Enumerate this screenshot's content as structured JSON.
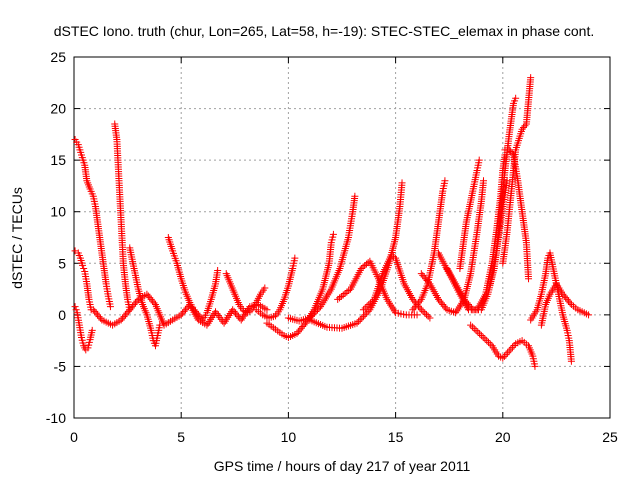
{
  "chart_data": {
    "type": "scatter",
    "title": "dSTEC Iono. truth (chur, Lon=265, Lat=58, h=-19): STEC-STEC_elemax in phase cont.",
    "xlabel": "GPS time / hours of day 217 of year 2011",
    "ylabel": "dSTEC  / TECUs",
    "xlim": [
      0,
      25
    ],
    "ylim": [
      -10,
      25
    ],
    "xticks": [
      0,
      5,
      10,
      15,
      20,
      25
    ],
    "yticks": [
      -10,
      -5,
      0,
      5,
      10,
      15,
      20,
      25
    ],
    "grid": true,
    "marker": "+",
    "color": "#ff0000",
    "series": [
      {
        "points": [
          [
            0.05,
            17.0
          ],
          [
            0.2,
            16.5
          ],
          [
            0.35,
            15.5
          ],
          [
            0.5,
            14.5
          ],
          [
            0.6,
            13.0
          ],
          [
            0.75,
            12.2
          ],
          [
            0.9,
            11.5
          ],
          [
            1.0,
            10.5
          ],
          [
            1.1,
            9.0
          ],
          [
            1.2,
            7.5
          ],
          [
            1.3,
            6.0
          ],
          [
            1.4,
            4.5
          ],
          [
            1.5,
            3.0
          ],
          [
            1.6,
            1.8
          ],
          [
            1.7,
            0.8
          ]
        ]
      },
      {
        "points": [
          [
            0.05,
            6.2
          ],
          [
            0.2,
            6.0
          ],
          [
            0.3,
            5.5
          ],
          [
            0.4,
            4.8
          ],
          [
            0.5,
            4.2
          ],
          [
            0.6,
            3.0
          ],
          [
            0.7,
            1.5
          ],
          [
            0.8,
            0.5
          ]
        ]
      },
      {
        "points": [
          [
            0.05,
            0.8
          ],
          [
            0.15,
            0.2
          ],
          [
            0.25,
            -1.0
          ],
          [
            0.35,
            -2.2
          ],
          [
            0.45,
            -3.0
          ],
          [
            0.55,
            -3.4
          ],
          [
            0.65,
            -3.2
          ],
          [
            0.75,
            -2.4
          ],
          [
            0.85,
            -1.5
          ]
        ]
      },
      {
        "points": [
          [
            1.9,
            18.5
          ],
          [
            2.0,
            17.0
          ],
          [
            2.05,
            15.0
          ],
          [
            2.1,
            13.0
          ],
          [
            2.15,
            11.0
          ],
          [
            2.2,
            9.0
          ],
          [
            2.25,
            7.0
          ],
          [
            2.3,
            5.0
          ],
          [
            2.4,
            3.0
          ],
          [
            2.5,
            1.5
          ],
          [
            2.6,
            0.5
          ]
        ]
      },
      {
        "points": [
          [
            2.6,
            6.5
          ],
          [
            2.8,
            4.5
          ],
          [
            3.0,
            2.5
          ],
          [
            3.2,
            1.0
          ],
          [
            3.4,
            0.0
          ],
          [
            3.6,
            -1.5
          ],
          [
            3.7,
            -2.5
          ],
          [
            3.8,
            -3.0
          ],
          [
            3.9,
            -2.0
          ],
          [
            4.0,
            -1.0
          ]
        ]
      },
      {
        "points": [
          [
            4.4,
            7.5
          ],
          [
            4.6,
            6.2
          ],
          [
            4.8,
            5.0
          ],
          [
            5.0,
            3.5
          ],
          [
            5.2,
            2.2
          ],
          [
            5.4,
            1.2
          ],
          [
            5.6,
            0.5
          ],
          [
            5.8,
            0.0
          ],
          [
            6.0,
            -0.5
          ],
          [
            6.2,
            0.2
          ],
          [
            6.4,
            1.5
          ],
          [
            6.6,
            3.0
          ],
          [
            6.7,
            4.3
          ]
        ]
      },
      {
        "points": [
          [
            7.1,
            4.0
          ],
          [
            7.3,
            3.0
          ],
          [
            7.5,
            2.0
          ],
          [
            7.7,
            1.0
          ],
          [
            7.9,
            0.4
          ],
          [
            8.1,
            0.2
          ],
          [
            8.3,
            0.5
          ],
          [
            8.5,
            1.2
          ],
          [
            8.7,
            2.0
          ],
          [
            8.9,
            2.6
          ]
        ]
      },
      {
        "points": [
          [
            8.5,
            0.5
          ],
          [
            8.8,
            0.0
          ],
          [
            9.1,
            -0.3
          ],
          [
            9.4,
            -0.1
          ],
          [
            9.6,
            0.5
          ],
          [
            9.8,
            1.5
          ],
          [
            10.0,
            2.8
          ],
          [
            10.2,
            4.5
          ],
          [
            10.3,
            5.5
          ]
        ]
      },
      {
        "points": [
          [
            9.0,
            -0.8
          ],
          [
            9.4,
            -1.4
          ],
          [
            9.8,
            -2.0
          ],
          [
            10.0,
            -2.2
          ],
          [
            10.4,
            -1.8
          ],
          [
            10.8,
            -0.8
          ],
          [
            11.2,
            0.5
          ],
          [
            11.6,
            2.5
          ],
          [
            11.9,
            5.0
          ],
          [
            12.0,
            7.0
          ],
          [
            12.1,
            7.8
          ]
        ]
      },
      {
        "points": [
          [
            10.0,
            -0.3
          ],
          [
            10.5,
            -0.6
          ],
          [
            11.0,
            -0.3
          ],
          [
            11.5,
            0.8
          ],
          [
            12.0,
            2.5
          ],
          [
            12.4,
            4.5
          ],
          [
            12.8,
            7.5
          ],
          [
            13.0,
            10.0
          ],
          [
            13.1,
            11.5
          ]
        ]
      },
      {
        "points": [
          [
            11.0,
            -0.5
          ],
          [
            11.8,
            -1.2
          ],
          [
            12.5,
            -1.3
          ],
          [
            13.2,
            -0.8
          ],
          [
            13.8,
            0.5
          ],
          [
            14.3,
            2.5
          ],
          [
            14.7,
            5.0
          ],
          [
            15.0,
            7.5
          ],
          [
            15.2,
            10.5
          ],
          [
            15.3,
            12.8
          ]
        ]
      },
      {
        "points": [
          [
            12.3,
            1.5
          ],
          [
            12.9,
            2.5
          ],
          [
            13.4,
            4.5
          ],
          [
            13.8,
            5.2
          ],
          [
            14.2,
            3.5
          ],
          [
            14.6,
            1.5
          ],
          [
            15.0,
            0.2
          ],
          [
            15.5,
            0.0
          ],
          [
            16.0,
            0.0
          ]
        ]
      },
      {
        "points": [
          [
            13.5,
            0.5
          ],
          [
            14.0,
            1.5
          ],
          [
            14.4,
            4.0
          ],
          [
            14.8,
            5.8
          ],
          [
            15.0,
            5.5
          ],
          [
            15.4,
            3.0
          ],
          [
            15.8,
            1.5
          ],
          [
            16.2,
            0.5
          ],
          [
            16.6,
            -0.3
          ]
        ]
      },
      {
        "points": [
          [
            15.8,
            0.5
          ],
          [
            16.2,
            1.5
          ],
          [
            16.5,
            3.0
          ],
          [
            16.8,
            6.0
          ],
          [
            17.0,
            9.0
          ],
          [
            17.2,
            12.0
          ],
          [
            17.3,
            13.0
          ]
        ]
      },
      {
        "points": [
          [
            16.2,
            4.0
          ],
          [
            16.6,
            3.0
          ],
          [
            17.0,
            1.5
          ],
          [
            17.4,
            0.5
          ],
          [
            17.8,
            0.2
          ],
          [
            18.2,
            1.5
          ],
          [
            18.5,
            4.0
          ],
          [
            18.8,
            8.0
          ],
          [
            19.0,
            11.0
          ],
          [
            19.1,
            13.0
          ]
        ]
      },
      {
        "points": [
          [
            17.0,
            6.0
          ],
          [
            17.5,
            4.0
          ],
          [
            18.0,
            2.0
          ],
          [
            18.4,
            0.5
          ],
          [
            18.8,
            0.5
          ],
          [
            19.2,
            2.0
          ],
          [
            19.5,
            5.0
          ],
          [
            19.7,
            8.0
          ],
          [
            19.9,
            11.5
          ],
          [
            20.0,
            14.0
          ],
          [
            20.1,
            15.5
          ]
        ]
      },
      {
        "points": [
          [
            17.4,
            4.5
          ],
          [
            17.8,
            3.0
          ],
          [
            18.2,
            1.5
          ],
          [
            18.6,
            0.5
          ],
          [
            19.0,
            0.5
          ],
          [
            19.3,
            2.0
          ],
          [
            19.6,
            4.5
          ],
          [
            19.8,
            7.5
          ],
          [
            20.0,
            10.5
          ],
          [
            20.2,
            13.0
          ]
        ]
      },
      {
        "points": [
          [
            18.0,
            4.5
          ],
          [
            18.3,
            9.0
          ],
          [
            18.6,
            12.0
          ],
          [
            18.8,
            14.0
          ],
          [
            18.9,
            15.0
          ]
        ]
      },
      {
        "points": [
          [
            19.4,
            3.0
          ],
          [
            19.7,
            6.0
          ],
          [
            19.9,
            10.0
          ],
          [
            20.1,
            14.0
          ],
          [
            20.3,
            17.5
          ],
          [
            20.5,
            20.5
          ],
          [
            20.6,
            21.0
          ]
        ]
      },
      {
        "points": [
          [
            20.0,
            5.0
          ],
          [
            20.2,
            8.0
          ],
          [
            20.4,
            12.0
          ],
          [
            20.6,
            16.0
          ],
          [
            20.9,
            18.0
          ],
          [
            21.1,
            18.5
          ],
          [
            21.3,
            23.0
          ]
        ]
      },
      {
        "points": [
          [
            20.1,
            16.0
          ],
          [
            20.3,
            16.0
          ],
          [
            20.5,
            15.5
          ],
          [
            20.7,
            13.0
          ],
          [
            20.9,
            10.0
          ],
          [
            21.1,
            7.0
          ],
          [
            21.2,
            3.5
          ]
        ]
      },
      {
        "points": [
          [
            18.5,
            -1.0
          ],
          [
            19.0,
            -2.0
          ],
          [
            19.5,
            -3.0
          ],
          [
            19.8,
            -4.0
          ],
          [
            20.0,
            -4.2
          ],
          [
            20.3,
            -3.5
          ],
          [
            20.6,
            -2.8
          ],
          [
            20.9,
            -2.5
          ],
          [
            21.2,
            -3.0
          ],
          [
            21.4,
            -4.0
          ],
          [
            21.5,
            -5.0
          ]
        ]
      },
      {
        "points": [
          [
            21.3,
            -0.5
          ],
          [
            21.6,
            0.5
          ],
          [
            21.8,
            2.0
          ],
          [
            22.0,
            4.0
          ],
          [
            22.1,
            5.5
          ],
          [
            22.2,
            6.0
          ],
          [
            22.4,
            4.0
          ],
          [
            22.6,
            2.0
          ],
          [
            22.8,
            0.0
          ],
          [
            23.0,
            -1.5
          ],
          [
            23.1,
            -2.5
          ],
          [
            23.2,
            -4.5
          ]
        ]
      },
      {
        "points": [
          [
            21.8,
            -1.0
          ],
          [
            22.0,
            1.0
          ],
          [
            22.2,
            2.0
          ],
          [
            22.5,
            3.0
          ],
          [
            22.8,
            2.0
          ],
          [
            23.2,
            1.0
          ],
          [
            23.5,
            0.5
          ],
          [
            23.8,
            0.2
          ],
          [
            24.0,
            0.0
          ]
        ]
      },
      {
        "points": [
          [
            0.9,
            0.5
          ],
          [
            1.3,
            -0.5
          ],
          [
            1.8,
            -1.0
          ],
          [
            2.2,
            -0.5
          ],
          [
            2.6,
            0.5
          ],
          [
            3.0,
            1.5
          ],
          [
            3.4,
            2.0
          ],
          [
            3.8,
            1.0
          ],
          [
            4.2,
            -1.0
          ],
          [
            4.6,
            -0.5
          ],
          [
            5.0,
            0.0
          ],
          [
            5.4,
            1.0
          ],
          [
            5.8,
            -0.5
          ],
          [
            6.2,
            -1.0
          ],
          [
            6.6,
            0.3
          ],
          [
            7.0,
            -0.8
          ],
          [
            7.4,
            0.5
          ],
          [
            7.8,
            -0.5
          ],
          [
            8.2,
            0.8
          ],
          [
            8.6,
            1.0
          ],
          [
            9.0,
            0.5
          ]
        ]
      }
    ]
  }
}
